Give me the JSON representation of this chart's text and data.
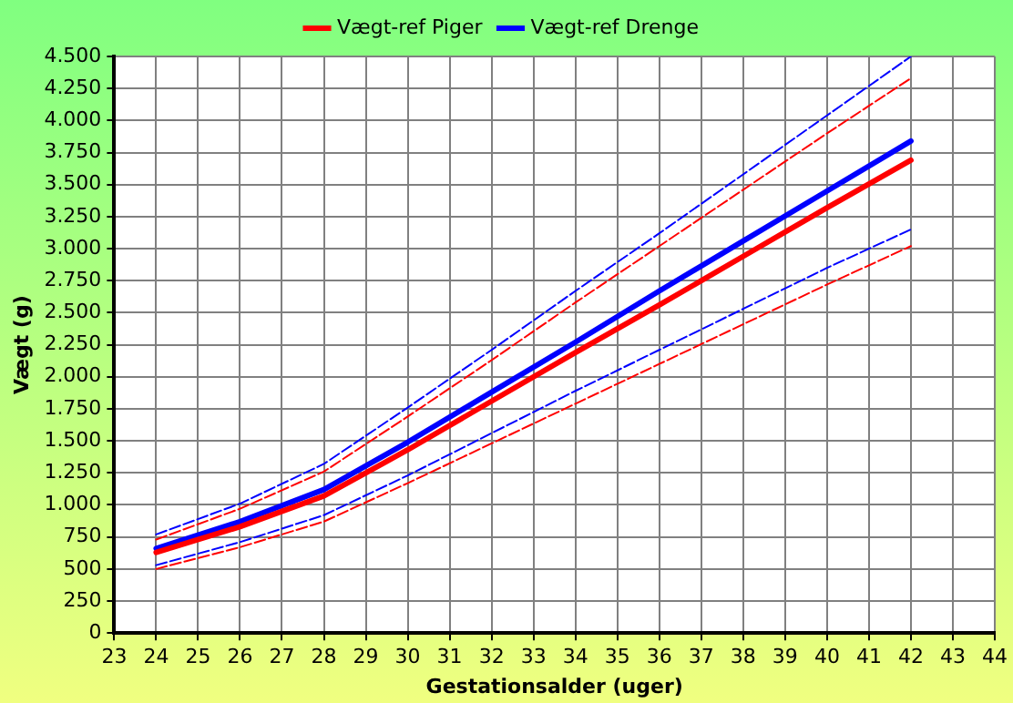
{
  "chart_data": {
    "type": "line",
    "xlabel": "Gestationsalder (uger)",
    "ylabel": "Vægt (g)",
    "x": [
      24,
      26,
      28,
      30,
      32,
      34,
      36,
      38,
      40,
      42
    ],
    "xlim": [
      23,
      44
    ],
    "xticks": [
      23,
      24,
      25,
      26,
      27,
      28,
      29,
      30,
      31,
      32,
      33,
      34,
      35,
      36,
      37,
      38,
      39,
      40,
      41,
      42,
      43,
      44
    ],
    "ylim": [
      0,
      4500
    ],
    "yticks": [
      0,
      {
        "value": 250,
        "label": "250"
      },
      500,
      750,
      {
        "value": 1000,
        "label": "1.000"
      },
      {
        "value": 1250,
        "label": "1.250"
      },
      {
        "value": 1500,
        "label": "1.500"
      },
      {
        "value": 1750,
        "label": "1.750"
      },
      {
        "value": 2000,
        "label": "2.000"
      },
      {
        "value": 2250,
        "label": "2.250"
      },
      {
        "value": 2500,
        "label": "2.500"
      },
      {
        "value": 2750,
        "label": "2.750"
      },
      {
        "value": 3000,
        "label": "3.000"
      },
      {
        "value": 3250,
        "label": "3.250"
      },
      {
        "value": 3500,
        "label": "3.500"
      },
      {
        "value": 3750,
        "label": "3.750"
      },
      {
        "value": 4000,
        "label": "4.000"
      },
      {
        "value": 4250,
        "label": "4.250"
      },
      {
        "value": 4500,
        "label": "4.500"
      }
    ],
    "grid": true,
    "legend": "top",
    "marker": "none",
    "series": [
      {
        "name": "Vægt-ref Piger",
        "color": "#ff0000",
        "line_style": "solid",
        "values": [
          630,
          830,
          1070,
          1430,
          1810,
          2190,
          2560,
          2940,
          3320,
          3690
        ]
      },
      {
        "name": "Vægt-ref Drenge",
        "color": "#0000ff",
        "line_style": "solid",
        "values": [
          660,
          870,
          1120,
          1490,
          1880,
          2270,
          2670,
          3060,
          3450,
          3840
        ]
      },
      {
        "color": "#ff0000",
        "line_style": "dashed",
        "values": [
          730,
          970,
          1260,
          1690,
          2130,
          2580,
          3020,
          3460,
          3900,
          4330
        ]
      },
      {
        "color": "#ff0000",
        "line_style": "dashed",
        "values": [
          500,
          670,
          870,
          1170,
          1480,
          1790,
          2100,
          2410,
          2720,
          3020
        ]
      },
      {
        "color": "#0000ff",
        "line_style": "dashed",
        "values": [
          770,
          1010,
          1320,
          1760,
          2210,
          2670,
          3120,
          3580,
          4040,
          4500
        ]
      },
      {
        "color": "#0000ff",
        "line_style": "dashed",
        "values": [
          530,
          710,
          920,
          1230,
          1560,
          1890,
          2210,
          2530,
          2850,
          3150
        ]
      }
    ]
  }
}
